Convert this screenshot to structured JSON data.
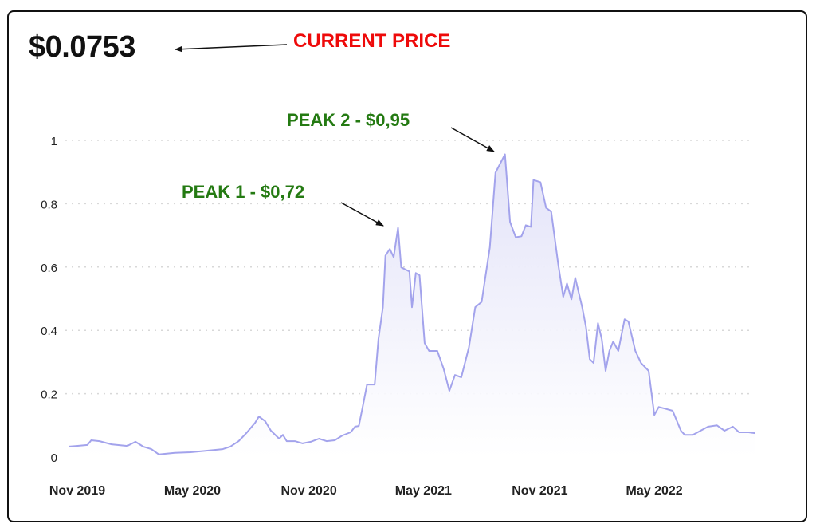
{
  "header": {
    "current_price": "$0.0753"
  },
  "annotations": {
    "current_price": "CURRENT PRICE",
    "peak1": "PEAK 1 - $0,72",
    "peak2": "PEAK 2 - $0,95"
  },
  "colors": {
    "line": "#a3a3ec",
    "fill_top": "#e2e2f8",
    "current_label": "#ee0a0a",
    "peak_label": "#247a12"
  },
  "chart_data": {
    "type": "area",
    "title": "",
    "xlabel": "",
    "ylabel": "",
    "ylim": [
      0,
      1
    ],
    "yticks": [
      "0",
      "0.2",
      "0.4",
      "0.6",
      "0.8",
      "1"
    ],
    "xticks": [
      {
        "label": "Nov 2019",
        "date": "2019-11-01"
      },
      {
        "label": "May 2020",
        "date": "2020-05-01"
      },
      {
        "label": "Nov 2020",
        "date": "2020-11-01"
      },
      {
        "label": "May 2021",
        "date": "2021-05-01"
      },
      {
        "label": "Nov 2021",
        "date": "2021-11-01"
      },
      {
        "label": "May 2022",
        "date": "2022-05-01"
      }
    ],
    "grid": "horizontal-dotted",
    "points": [
      [
        "2019-10-19",
        0.033
      ],
      [
        "2019-10-31",
        0.035
      ],
      [
        "2019-11-17",
        0.038
      ],
      [
        "2019-11-23",
        0.053
      ],
      [
        "2019-12-06",
        0.05
      ],
      [
        "2019-12-25",
        0.04
      ],
      [
        "2020-01-19",
        0.035
      ],
      [
        "2020-02-01",
        0.048
      ],
      [
        "2020-02-13",
        0.033
      ],
      [
        "2020-02-26",
        0.025
      ],
      [
        "2020-03-09",
        0.008
      ],
      [
        "2020-04-03",
        0.013
      ],
      [
        "2020-04-28",
        0.015
      ],
      [
        "2020-05-23",
        0.02
      ],
      [
        "2020-06-18",
        0.025
      ],
      [
        "2020-06-30",
        0.033
      ],
      [
        "2020-07-13",
        0.05
      ],
      [
        "2020-07-25",
        0.075
      ],
      [
        "2020-08-08",
        0.108
      ],
      [
        "2020-08-14",
        0.128
      ],
      [
        "2020-08-24",
        0.113
      ],
      [
        "2020-09-02",
        0.083
      ],
      [
        "2020-09-15",
        0.058
      ],
      [
        "2020-09-21",
        0.07
      ],
      [
        "2020-09-27",
        0.05
      ],
      [
        "2020-10-10",
        0.05
      ],
      [
        "2020-10-22",
        0.043
      ],
      [
        "2020-11-04",
        0.048
      ],
      [
        "2020-11-17",
        0.058
      ],
      [
        "2020-11-29",
        0.05
      ],
      [
        "2020-12-12",
        0.053
      ],
      [
        "2020-12-24",
        0.068
      ],
      [
        "2021-01-06",
        0.078
      ],
      [
        "2021-01-13",
        0.096
      ],
      [
        "2021-01-19",
        0.098
      ],
      [
        "2021-01-25",
        0.158
      ],
      [
        "2021-02-01",
        0.229
      ],
      [
        "2021-02-13",
        0.229
      ],
      [
        "2021-02-19",
        0.372
      ],
      [
        "2021-02-26",
        0.473
      ],
      [
        "2021-03-02",
        0.636
      ],
      [
        "2021-03-09",
        0.657
      ],
      [
        "2021-03-15",
        0.631
      ],
      [
        "2021-03-22",
        0.724
      ],
      [
        "2021-03-27",
        0.599
      ],
      [
        "2021-04-09",
        0.586
      ],
      [
        "2021-04-13",
        0.473
      ],
      [
        "2021-04-19",
        0.581
      ],
      [
        "2021-04-25",
        0.574
      ],
      [
        "2021-05-03",
        0.36
      ],
      [
        "2021-05-10",
        0.335
      ],
      [
        "2021-05-23",
        0.335
      ],
      [
        "2021-06-02",
        0.279
      ],
      [
        "2021-06-11",
        0.209
      ],
      [
        "2021-06-20",
        0.259
      ],
      [
        "2021-06-30",
        0.252
      ],
      [
        "2021-07-12",
        0.347
      ],
      [
        "2021-07-22",
        0.473
      ],
      [
        "2021-08-01",
        0.49
      ],
      [
        "2021-08-14",
        0.662
      ],
      [
        "2021-08-23",
        0.898
      ],
      [
        "2021-09-07",
        0.956
      ],
      [
        "2021-09-15",
        0.742
      ],
      [
        "2021-09-24",
        0.694
      ],
      [
        "2021-10-03",
        0.697
      ],
      [
        "2021-10-10",
        0.732
      ],
      [
        "2021-10-18",
        0.727
      ],
      [
        "2021-10-22",
        0.875
      ],
      [
        "2021-11-02",
        0.868
      ],
      [
        "2021-11-11",
        0.787
      ],
      [
        "2021-11-19",
        0.775
      ],
      [
        "2021-11-30",
        0.611
      ],
      [
        "2021-12-08",
        0.506
      ],
      [
        "2021-12-14",
        0.548
      ],
      [
        "2021-12-21",
        0.498
      ],
      [
        "2021-12-27",
        0.566
      ],
      [
        "2022-01-07",
        0.473
      ],
      [
        "2022-01-13",
        0.41
      ],
      [
        "2022-01-19",
        0.309
      ],
      [
        "2022-01-25",
        0.297
      ],
      [
        "2022-02-01",
        0.423
      ],
      [
        "2022-02-07",
        0.372
      ],
      [
        "2022-02-13",
        0.272
      ],
      [
        "2022-02-19",
        0.335
      ],
      [
        "2022-02-25",
        0.365
      ],
      [
        "2022-03-05",
        0.335
      ],
      [
        "2022-03-15",
        0.435
      ],
      [
        "2022-03-21",
        0.428
      ],
      [
        "2022-04-01",
        0.335
      ],
      [
        "2022-04-10",
        0.297
      ],
      [
        "2022-04-22",
        0.272
      ],
      [
        "2022-05-01",
        0.133
      ],
      [
        "2022-05-08",
        0.158
      ],
      [
        "2022-05-18",
        0.153
      ],
      [
        "2022-05-30",
        0.146
      ],
      [
        "2022-06-12",
        0.083
      ],
      [
        "2022-06-18",
        0.07
      ],
      [
        "2022-07-01",
        0.07
      ],
      [
        "2022-07-13",
        0.083
      ],
      [
        "2022-07-25",
        0.096
      ],
      [
        "2022-08-08",
        0.1
      ],
      [
        "2022-08-20",
        0.083
      ],
      [
        "2022-09-02",
        0.096
      ],
      [
        "2022-09-12",
        0.078
      ],
      [
        "2022-09-27",
        0.078
      ],
      [
        "2022-10-07",
        0.0753
      ]
    ]
  }
}
